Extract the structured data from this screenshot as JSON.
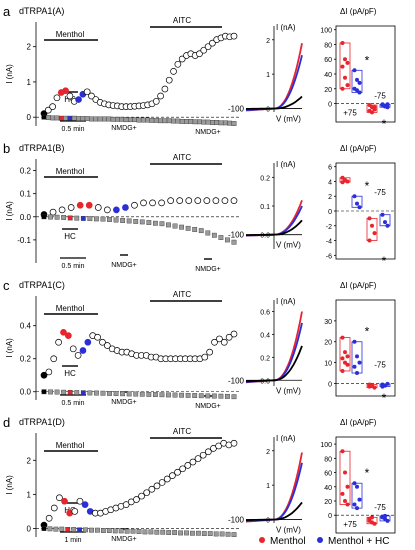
{
  "figure": {
    "legend": [
      {
        "label": "Menthol",
        "color": "#e8242c"
      },
      {
        "label": "Menthol + HC",
        "color": "#2a2fd8"
      }
    ]
  },
  "colors": {
    "red": "#e8242c",
    "blue": "#2a2fd8",
    "black": "#000000",
    "gray": "#8c8c8c"
  },
  "chart_data": [
    {
      "panel": "a",
      "title": "dTRPA1(A)",
      "type": "scatter",
      "time_trace": {
        "ylabel": "I (nA)",
        "yticks": [
          "0",
          "1",
          "2"
        ],
        "ylim": [
          -0.25,
          2.7
        ],
        "labels": {
          "menthol": "Menthol",
          "hc": "HC",
          "aitc": "AITC",
          "nmdg1": "NMDG+",
          "nmdg2": "NMDG+",
          "scale": "0.5 min"
        },
        "outward_nA": [
          0.1,
          0.2,
          0.3,
          0.55,
          0.7,
          0.75,
          0.6,
          0.45,
          0.5,
          0.65,
          0.72,
          0.6,
          0.5,
          0.42,
          0.38,
          0.35,
          0.33,
          0.32,
          0.3,
          0.3,
          0.3,
          0.31,
          0.32,
          0.33,
          0.35,
          0.38,
          0.45,
          0.6,
          0.8,
          1.05,
          1.3,
          1.5,
          1.65,
          1.75,
          1.8,
          1.75,
          1.8,
          1.9,
          2.0,
          2.1,
          2.2,
          2.25,
          2.3,
          2.28,
          2.3
        ],
        "inward_nA": [
          0.0,
          -0.01,
          -0.02,
          -0.02,
          -0.03,
          -0.03,
          -0.03,
          -0.03,
          -0.04,
          -0.04,
          -0.04,
          -0.05,
          -0.05,
          -0.05,
          -0.05,
          -0.05,
          -0.06,
          -0.06,
          -0.06,
          -0.07,
          -0.07,
          -0.07,
          -0.08,
          -0.08,
          -0.08,
          -0.09,
          -0.09,
          -0.1,
          -0.1,
          -0.1,
          -0.11,
          -0.11,
          -0.12,
          -0.12,
          -0.12,
          -0.13,
          -0.13,
          -0.14,
          -0.14,
          -0.15,
          -0.15,
          -0.16,
          -0.16,
          -0.17,
          -0.18
        ]
      },
      "iv": {
        "ylabel": "I (nA)",
        "xlabel": "V (mV)",
        "x_tick": "-100",
        "y_ticks": [
          "0",
          "1",
          "2"
        ],
        "ylim": [
          -0.1,
          2.4
        ],
        "series": [
          {
            "color": "red",
            "I_at_plus100": 1.9
          },
          {
            "color": "blue",
            "I_at_plus100": 1.55
          },
          {
            "color": "black",
            "I_at_plus100": 0.35
          }
        ]
      },
      "density": {
        "ylabel": "ΔI (pA/pF)",
        "y_ticks": [
          "100",
          "80",
          "60",
          "40",
          "20",
          "0"
        ],
        "ylim": [
          -25,
          105
        ],
        "labels": [
          "+75",
          "-75"
        ],
        "stars": [
          "*",
          "*"
        ],
        "menthol_plus75": [
          82,
          60,
          55,
          50,
          35,
          25,
          20
        ],
        "hc_plus75": [
          45,
          32,
          28,
          20,
          18,
          15
        ],
        "menthol_minus75": [
          -2,
          -5,
          -8,
          -10,
          -12,
          -5
        ],
        "hc_minus75": [
          -1,
          -3,
          -5,
          -2,
          -4,
          -1
        ]
      }
    },
    {
      "panel": "b",
      "title": "dTRPA1(B)",
      "type": "scatter",
      "time_trace": {
        "ylabel": "I (nA)",
        "yticks": [
          "0.2",
          "0.1",
          "0.0",
          "-0.1"
        ],
        "ylim": [
          -0.2,
          0.25
        ],
        "labels": {
          "menthol": "Menthol",
          "hc": "HC",
          "aitc": "AITC",
          "nmdg1": "NMDG+",
          "nmdg2": "NMDG+",
          "scale": "0.5 min"
        },
        "outward_nA": [
          0.01,
          0.02,
          0.03,
          0.04,
          0.05,
          0.05,
          0.04,
          0.03,
          0.03,
          0.04,
          0.05,
          0.06,
          0.06,
          0.06,
          0.07,
          0.07,
          0.07,
          0.07,
          0.07,
          0.07,
          0.07,
          0.07
        ],
        "inward_nA": [
          0.0,
          -0.001,
          -0.002,
          -0.003,
          -0.005,
          -0.006,
          -0.007,
          -0.008,
          -0.009,
          -0.01,
          -0.012,
          -0.014,
          -0.016,
          -0.018,
          -0.02,
          -0.022,
          -0.025,
          -0.028,
          -0.03,
          -0.035,
          -0.04,
          -0.045,
          -0.05,
          -0.055,
          -0.06,
          -0.07,
          -0.08,
          -0.09,
          -0.1,
          -0.11
        ]
      },
      "iv": {
        "ylabel": "I (nA)",
        "xlabel": "V (mV)",
        "x_tick": "-100",
        "y_ticks": [
          "0.2",
          "0.1",
          "0.0"
        ],
        "ylim": [
          -0.05,
          0.25
        ],
        "series": [
          {
            "color": "red",
            "I_at_plus100": 0.12
          },
          {
            "color": "blue",
            "I_at_plus100": 0.1
          },
          {
            "color": "black",
            "I_at_plus100": 0.05
          }
        ]
      },
      "density": {
        "ylabel": "ΔI (pA/pF)",
        "y_ticks": [
          "6",
          "4",
          "2",
          "0",
          "-2",
          "-4",
          "-6"
        ],
        "ylim": [
          -6.5,
          6.5
        ],
        "labels": [
          "-75"
        ],
        "stars": [
          "*",
          "*"
        ],
        "menthol_plus75": [
          4.5,
          4.2,
          4.0,
          3.9
        ],
        "hc_plus75": [
          2.0,
          1.0,
          0.5
        ],
        "menthol_minus75": [
          -1.0,
          -2.0,
          -3.0,
          -4.0
        ],
        "hc_minus75": [
          -0.5,
          -1.5,
          -2.0
        ]
      }
    },
    {
      "panel": "c",
      "title": "dTRPA1(C)",
      "type": "scatter",
      "time_trace": {
        "ylabel": "I (nA)",
        "yticks": [
          "0.4",
          "0.2",
          "0.0"
        ],
        "ylim": [
          -0.05,
          0.58
        ],
        "labels": {
          "menthol": "Menthol",
          "hc": "HC",
          "aitc": "AITC",
          "nmdg1": "NMDG+",
          "nmdg2": "NMDG+",
          "scale": "0.5 min"
        },
        "outward_nA": [
          0.1,
          0.12,
          0.2,
          0.3,
          0.36,
          0.34,
          0.26,
          0.22,
          0.25,
          0.3,
          0.34,
          0.33,
          0.3,
          0.28,
          0.26,
          0.25,
          0.24,
          0.24,
          0.23,
          0.22,
          0.22,
          0.22,
          0.21,
          0.21,
          0.2,
          0.2,
          0.2,
          0.2,
          0.2,
          0.2,
          0.2,
          0.2,
          0.2,
          0.21,
          0.24,
          0.3,
          0.32,
          0.3,
          0.33,
          0.35
        ],
        "inward_nA": [
          0.0,
          -0.001,
          -0.002,
          -0.003,
          -0.004,
          -0.005,
          -0.006,
          -0.007,
          -0.008,
          -0.009,
          -0.01,
          -0.011,
          -0.012,
          -0.013,
          -0.014,
          -0.015,
          -0.016,
          -0.017,
          -0.018,
          -0.019,
          -0.02,
          -0.021,
          -0.022,
          -0.023,
          -0.024,
          -0.025,
          -0.026,
          -0.027,
          -0.028,
          -0.03
        ]
      },
      "iv": {
        "ylabel": "I (nA)",
        "xlabel": "V (mV)",
        "x_tick": "-100",
        "y_ticks": [
          "0.6",
          "0.4",
          "0.2",
          "0.0"
        ],
        "ylim": [
          -0.05,
          0.7
        ],
        "series": [
          {
            "color": "red",
            "I_at_plus100": 0.6
          },
          {
            "color": "blue",
            "I_at_plus100": 0.5
          },
          {
            "color": "black",
            "I_at_plus100": 0.3
          }
        ]
      },
      "density": {
        "ylabel": "ΔI (pA/pF)",
        "y_ticks": [
          "30",
          "20",
          "10",
          "0"
        ],
        "ylim": [
          -6,
          40
        ],
        "labels": [
          "-75"
        ],
        "stars": [
          "*",
          "*"
        ],
        "menthol_plus75": [
          22,
          15,
          13,
          12,
          10,
          9,
          6
        ],
        "hc_plus75": [
          20,
          13,
          10,
          8,
          5
        ],
        "menthol_minus75": [
          -0.5,
          -1.0,
          -2.0,
          -1.5
        ],
        "hc_minus75": [
          -0.5,
          -1.0,
          -0.2,
          -1.5
        ]
      }
    },
    {
      "panel": "d",
      "title": "dTRPA1(D)",
      "type": "scatter",
      "time_trace": {
        "ylabel": "I (nA)",
        "yticks": [
          "0",
          "1",
          "2"
        ],
        "ylim": [
          -0.25,
          2.8
        ],
        "labels": {
          "menthol": "Menthol",
          "hc": "HC",
          "aitc": "AITC",
          "nmdg1": "NMDG+",
          "scale": "1 min"
        },
        "outward_nA": [
          0.1,
          0.3,
          0.6,
          0.9,
          0.8,
          0.45,
          0.5,
          0.8,
          0.7,
          0.5,
          0.45,
          0.45,
          0.5,
          0.55,
          0.6,
          0.65,
          0.7,
          0.78,
          0.85,
          0.95,
          1.05,
          1.15,
          1.25,
          1.35,
          1.45,
          1.55,
          1.65,
          1.75,
          1.85,
          1.95,
          2.05,
          2.15,
          2.25,
          2.35,
          2.42,
          2.5,
          2.45,
          2.5
        ],
        "inward_nA": [
          0.0,
          -0.01,
          -0.02,
          -0.02,
          -0.03,
          -0.03,
          -0.04,
          -0.04,
          -0.05,
          -0.05,
          -0.06,
          -0.06,
          -0.07,
          -0.07,
          -0.08,
          -0.08,
          -0.09,
          -0.1,
          -0.1,
          -0.11,
          -0.11,
          -0.12,
          -0.12,
          -0.13,
          -0.13,
          -0.14,
          -0.14,
          -0.15,
          -0.15,
          -0.16,
          -0.16,
          -0.17,
          -0.18
        ]
      },
      "iv": {
        "ylabel": "I (nA)",
        "xlabel": "V (mV)",
        "x_tick": "-100",
        "y_ticks": [
          "0",
          "1",
          "2"
        ],
        "ylim": [
          -0.1,
          2.4
        ],
        "series": [
          {
            "color": "red",
            "I_at_plus100": 1.95
          },
          {
            "color": "blue",
            "I_at_plus100": 1.65
          },
          {
            "color": "black",
            "I_at_plus100": 0.5
          }
        ]
      },
      "density": {
        "ylabel": "ΔI (pA/pF)",
        "y_ticks": [
          "100",
          "80",
          "60",
          "40",
          "20",
          "0"
        ],
        "ylim": [
          -25,
          110
        ],
        "labels": [
          "+75",
          "-75"
        ],
        "stars": [
          "*"
        ],
        "menthol_plus75": [
          90,
          60,
          40,
          30,
          20,
          15
        ],
        "hc_plus75": [
          45,
          40,
          22,
          15,
          10
        ],
        "menthol_minus75": [
          -5,
          -10,
          -12,
          -8,
          -3
        ],
        "hc_minus75": [
          -2,
          -5,
          -8,
          -3,
          -1
        ]
      }
    }
  ]
}
